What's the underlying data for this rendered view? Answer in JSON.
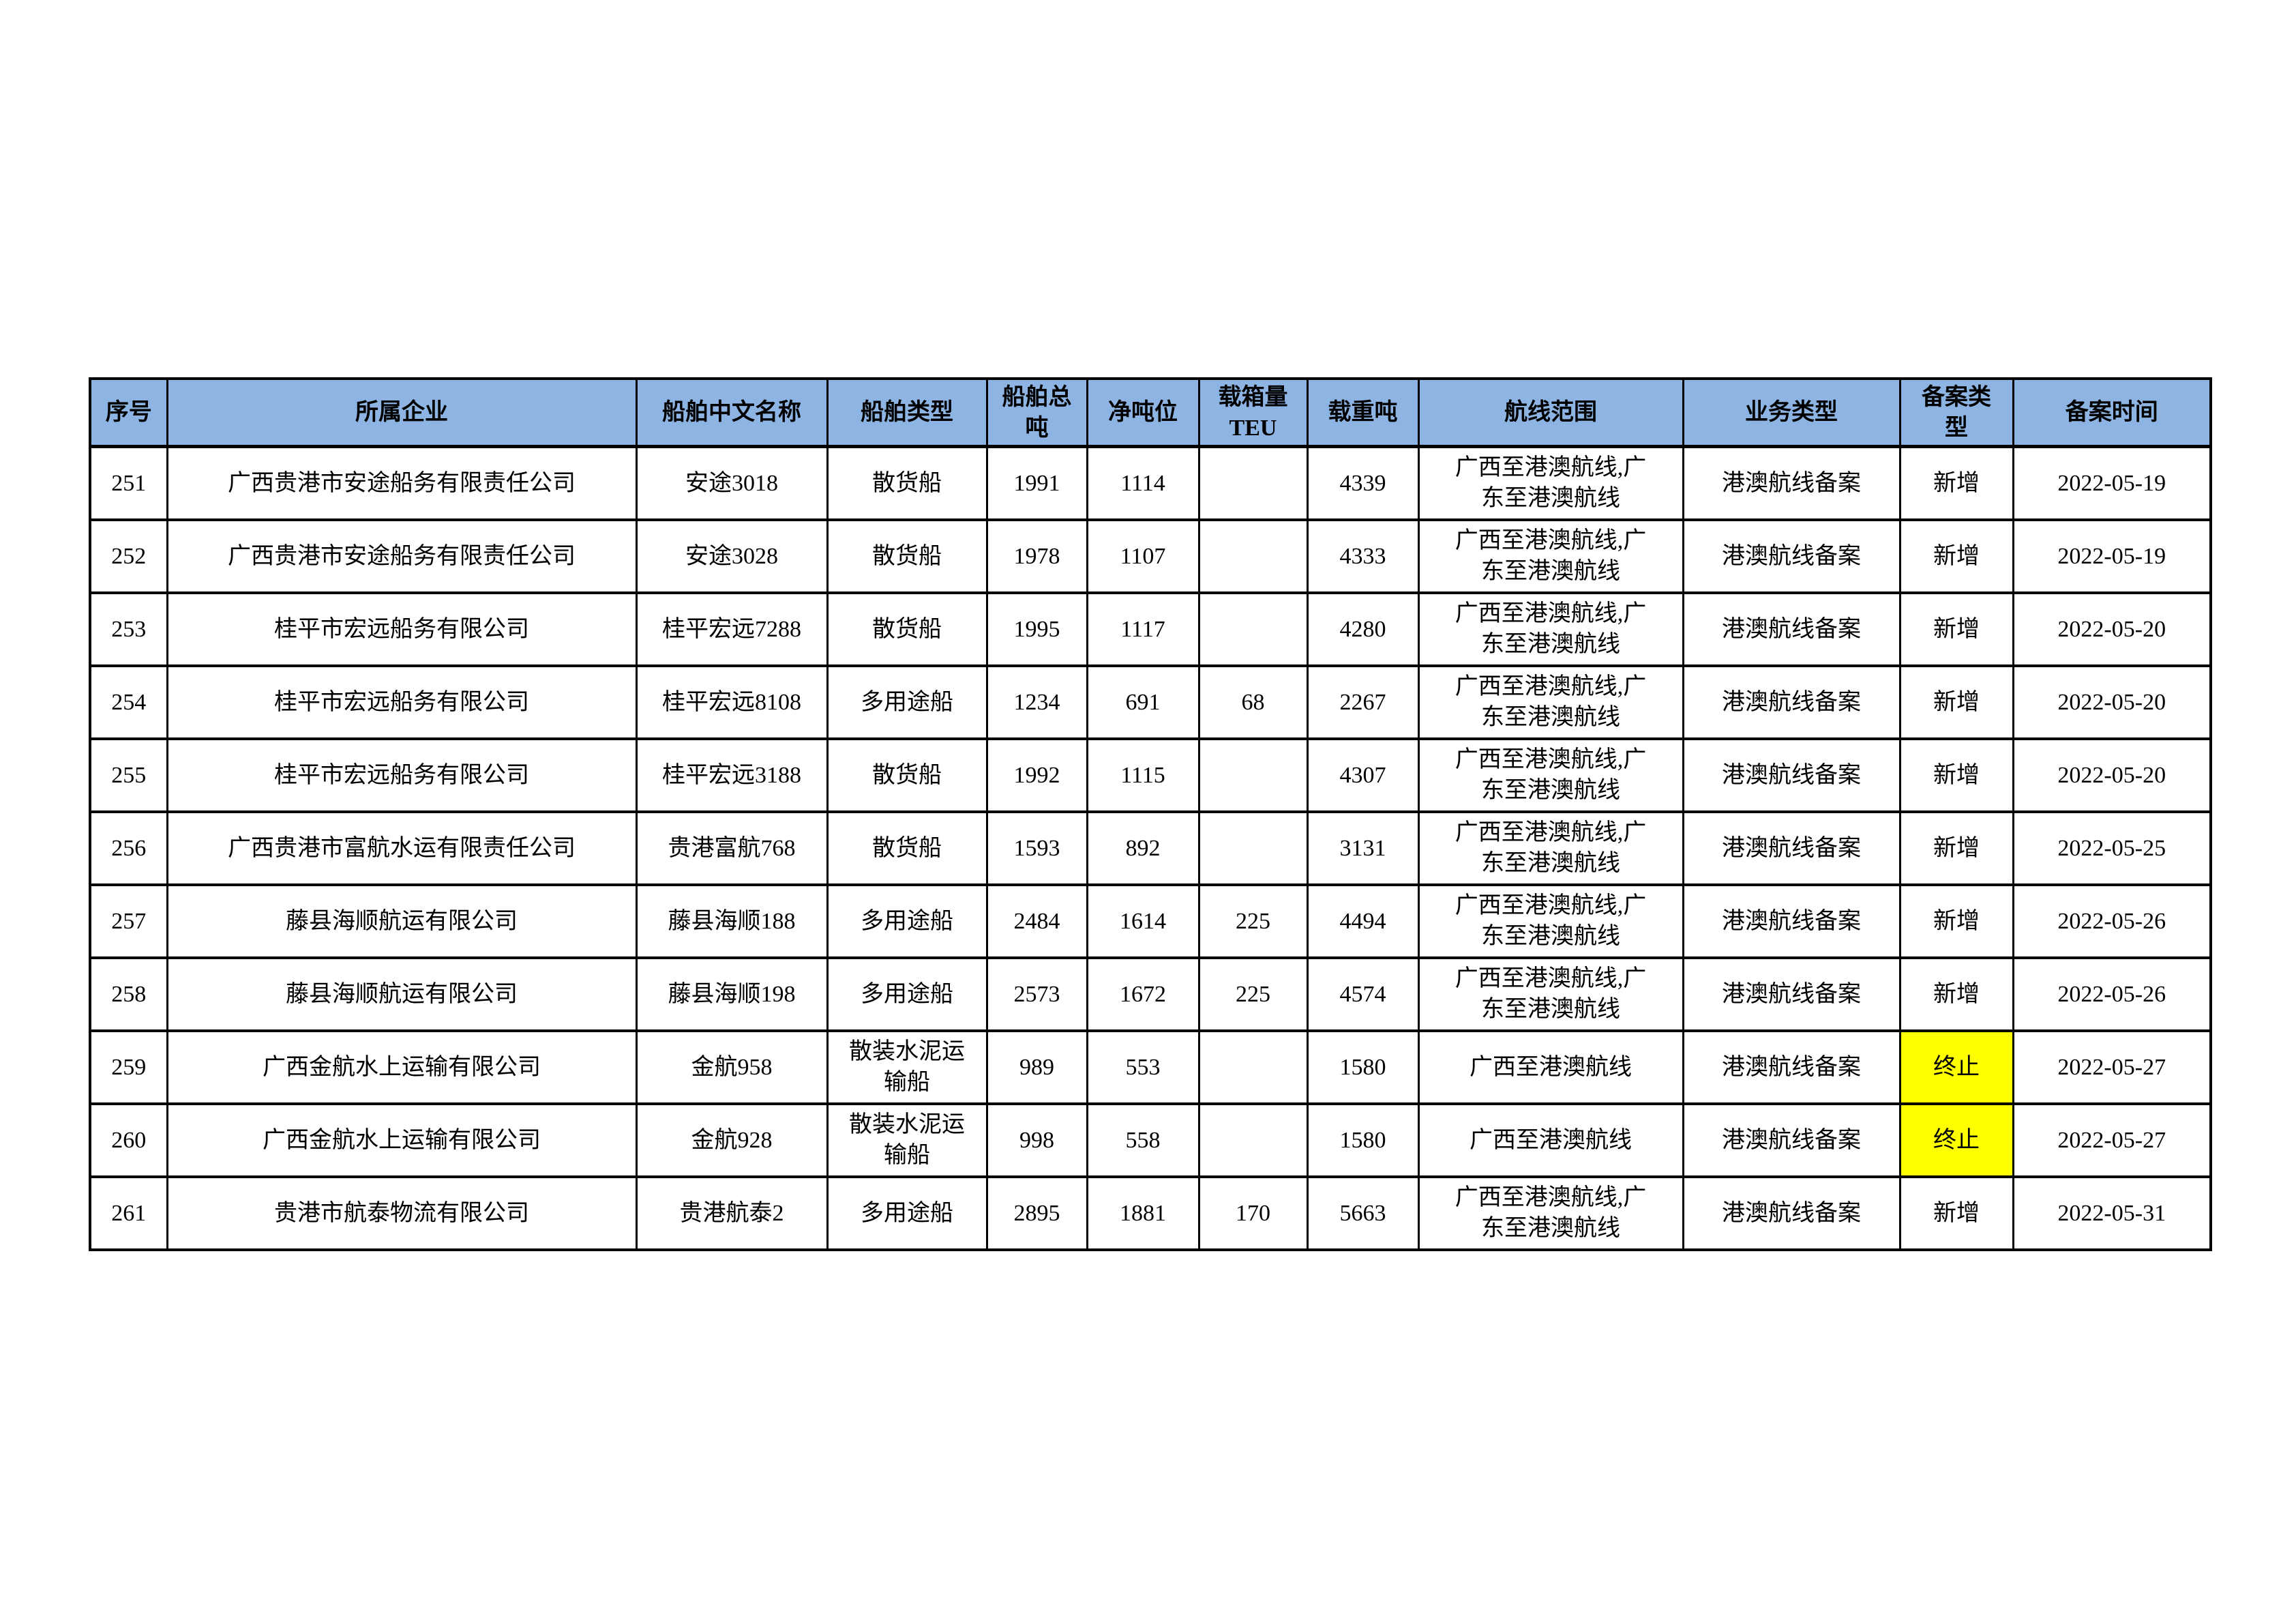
{
  "table": {
    "header_bg": "#8DB4E2",
    "highlight_color": "#FFFF00",
    "columns": [
      {
        "key": "index",
        "label": "序号"
      },
      {
        "key": "company",
        "label": "所属企业"
      },
      {
        "key": "ship_name",
        "label": "船舶中文名称"
      },
      {
        "key": "ship_type",
        "label": "船舶类型"
      },
      {
        "key": "gross_tonnage",
        "label": "船舶总吨"
      },
      {
        "key": "net_tonnage",
        "label": "净吨位"
      },
      {
        "key": "teu",
        "label": "载箱量TEU"
      },
      {
        "key": "deadweight",
        "label": "载重吨"
      },
      {
        "key": "route_range",
        "label": "航线范围"
      },
      {
        "key": "business_type",
        "label": "业务类型"
      },
      {
        "key": "filing_type",
        "label": "备案类型"
      },
      {
        "key": "filing_date",
        "label": "备案时间"
      }
    ],
    "rows": [
      {
        "index": "251",
        "company": "广西贵港市安途船务有限责任公司",
        "ship_name": "安途3018",
        "ship_type": "散货船",
        "gross_tonnage": "1991",
        "net_tonnage": "1114",
        "teu": "",
        "deadweight": "4339",
        "route_range": "广西至港澳航线,广东至港澳航线",
        "business_type": "港澳航线备案",
        "filing_type": "新增",
        "filing_date": "2022-05-19",
        "highlight": false
      },
      {
        "index": "252",
        "company": "广西贵港市安途船务有限责任公司",
        "ship_name": "安途3028",
        "ship_type": "散货船",
        "gross_tonnage": "1978",
        "net_tonnage": "1107",
        "teu": "",
        "deadweight": "4333",
        "route_range": "广西至港澳航线,广东至港澳航线",
        "business_type": "港澳航线备案",
        "filing_type": "新增",
        "filing_date": "2022-05-19",
        "highlight": false
      },
      {
        "index": "253",
        "company": "桂平市宏远船务有限公司",
        "ship_name": "桂平宏远7288",
        "ship_type": "散货船",
        "gross_tonnage": "1995",
        "net_tonnage": "1117",
        "teu": "",
        "deadweight": "4280",
        "route_range": "广西至港澳航线,广东至港澳航线",
        "business_type": "港澳航线备案",
        "filing_type": "新增",
        "filing_date": "2022-05-20",
        "highlight": false
      },
      {
        "index": "254",
        "company": "桂平市宏远船务有限公司",
        "ship_name": "桂平宏远8108",
        "ship_type": "多用途船",
        "gross_tonnage": "1234",
        "net_tonnage": "691",
        "teu": "68",
        "deadweight": "2267",
        "route_range": "广西至港澳航线,广东至港澳航线",
        "business_type": "港澳航线备案",
        "filing_type": "新增",
        "filing_date": "2022-05-20",
        "highlight": false
      },
      {
        "index": "255",
        "company": "桂平市宏远船务有限公司",
        "ship_name": "桂平宏远3188",
        "ship_type": "散货船",
        "gross_tonnage": "1992",
        "net_tonnage": "1115",
        "teu": "",
        "deadweight": "4307",
        "route_range": "广西至港澳航线,广东至港澳航线",
        "business_type": "港澳航线备案",
        "filing_type": "新增",
        "filing_date": "2022-05-20",
        "highlight": false
      },
      {
        "index": "256",
        "company": "广西贵港市富航水运有限责任公司",
        "ship_name": "贵港富航768",
        "ship_type": "散货船",
        "gross_tonnage": "1593",
        "net_tonnage": "892",
        "teu": "",
        "deadweight": "3131",
        "route_range": "广西至港澳航线,广东至港澳航线",
        "business_type": "港澳航线备案",
        "filing_type": "新增",
        "filing_date": "2022-05-25",
        "highlight": false
      },
      {
        "index": "257",
        "company": "藤县海顺航运有限公司",
        "ship_name": "藤县海顺188",
        "ship_type": "多用途船",
        "gross_tonnage": "2484",
        "net_tonnage": "1614",
        "teu": "225",
        "deadweight": "4494",
        "route_range": "广西至港澳航线,广东至港澳航线",
        "business_type": "港澳航线备案",
        "filing_type": "新增",
        "filing_date": "2022-05-26",
        "highlight": false
      },
      {
        "index": "258",
        "company": "藤县海顺航运有限公司",
        "ship_name": "藤县海顺198",
        "ship_type": "多用途船",
        "gross_tonnage": "2573",
        "net_tonnage": "1672",
        "teu": "225",
        "deadweight": "4574",
        "route_range": "广西至港澳航线,广东至港澳航线",
        "business_type": "港澳航线备案",
        "filing_type": "新增",
        "filing_date": "2022-05-26",
        "highlight": false
      },
      {
        "index": "259",
        "company": "广西金航水上运输有限公司",
        "ship_name": "金航958",
        "ship_type": "散装水泥运输船",
        "gross_tonnage": "989",
        "net_tonnage": "553",
        "teu": "",
        "deadweight": "1580",
        "route_range": "广西至港澳航线",
        "business_type": "港澳航线备案",
        "filing_type": "终止",
        "filing_date": "2022-05-27",
        "highlight": true
      },
      {
        "index": "260",
        "company": "广西金航水上运输有限公司",
        "ship_name": "金航928",
        "ship_type": "散装水泥运输船",
        "gross_tonnage": "998",
        "net_tonnage": "558",
        "teu": "",
        "deadweight": "1580",
        "route_range": "广西至港澳航线",
        "business_type": "港澳航线备案",
        "filing_type": "终止",
        "filing_date": "2022-05-27",
        "highlight": true
      },
      {
        "index": "261",
        "company": "贵港市航泰物流有限公司",
        "ship_name": "贵港航泰2",
        "ship_type": "多用途船",
        "gross_tonnage": "2895",
        "net_tonnage": "1881",
        "teu": "170",
        "deadweight": "5663",
        "route_range": "广西至港澳航线,广东至港澳航线",
        "business_type": "港澳航线备案",
        "filing_type": "新增",
        "filing_date": "2022-05-31",
        "highlight": false
      }
    ]
  }
}
